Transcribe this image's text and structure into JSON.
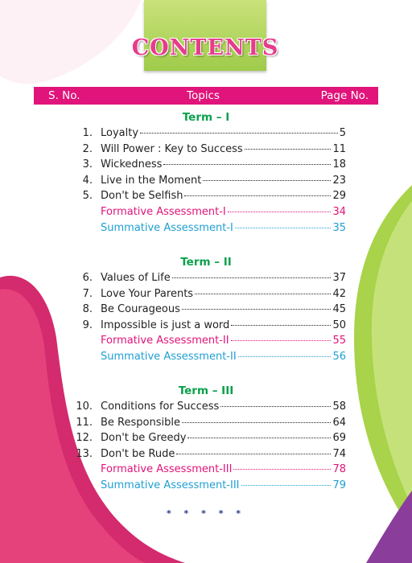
{
  "title": "CONTENTS",
  "header": {
    "sno": "S. No.",
    "topics": "Topics",
    "page": "Page No."
  },
  "terms": [
    {
      "label": "Term – I",
      "items": [
        {
          "num": "1.",
          "name": "Loyalty",
          "page": "5",
          "kind": "lesson"
        },
        {
          "num": "2.",
          "name": "Will Power : Key to Success",
          "page": "11",
          "kind": "lesson"
        },
        {
          "num": "3.",
          "name": "Wickedness",
          "page": "18",
          "kind": "lesson"
        },
        {
          "num": "4.",
          "name": "Live in the Moment",
          "page": "23",
          "kind": "lesson"
        },
        {
          "num": "5.",
          "name": "Don't be Selfish",
          "page": "29",
          "kind": "lesson"
        },
        {
          "num": "",
          "name": "Formative Assessment-I",
          "page": "34",
          "kind": "formative"
        },
        {
          "num": "",
          "name": "Summative Assessment-I",
          "page": "35",
          "kind": "summative"
        }
      ]
    },
    {
      "label": "Term – II",
      "items": [
        {
          "num": "6.",
          "name": "Values of Life",
          "page": "37",
          "kind": "lesson"
        },
        {
          "num": "7.",
          "name": "Love Your Parents",
          "page": "42",
          "kind": "lesson"
        },
        {
          "num": "8.",
          "name": "Be Courageous",
          "page": "45",
          "kind": "lesson"
        },
        {
          "num": "9.",
          "name": "Impossible is just a word",
          "page": "50",
          "kind": "lesson"
        },
        {
          "num": "",
          "name": "Formative Assessment-II",
          "page": "55",
          "kind": "formative"
        },
        {
          "num": "",
          "name": "Summative Assessment-II",
          "page": "56",
          "kind": "summative"
        }
      ]
    },
    {
      "label": "Term – III",
      "items": [
        {
          "num": "10.",
          "name": "Conditions for Success",
          "page": "58",
          "kind": "lesson"
        },
        {
          "num": "11.",
          "name": "Be Responsible",
          "page": "64",
          "kind": "lesson"
        },
        {
          "num": "12.",
          "name": "Don't be Greedy",
          "page": "69",
          "kind": "lesson"
        },
        {
          "num": "13.",
          "name": "Don't be Rude",
          "page": "74",
          "kind": "lesson"
        },
        {
          "num": "",
          "name": "Formative Assessment-III",
          "page": "78",
          "kind": "formative"
        },
        {
          "num": "",
          "name": "Summative Assessment-III",
          "page": "79",
          "kind": "summative"
        }
      ]
    }
  ],
  "end_mark": "* * * * *",
  "colors": {
    "header_bar": "#e0147a",
    "term_heading": "#0aa14c",
    "formative": "#e0147a",
    "summative": "#1f9fd2",
    "title_box": "#b6d85e"
  }
}
